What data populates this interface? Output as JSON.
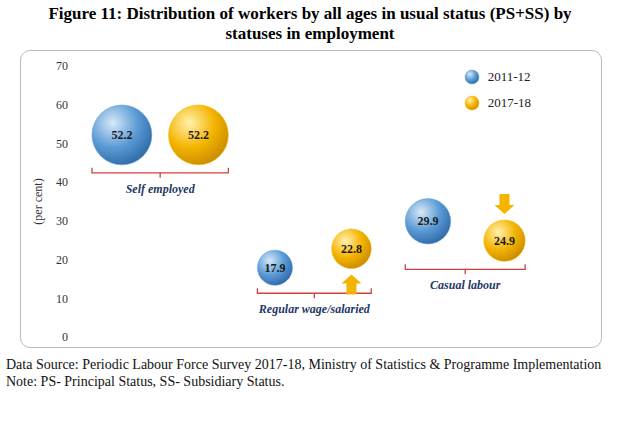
{
  "chart_data": {
    "type": "bubble",
    "title": "Figure 11: Distribution of workers by all ages in usual status (PS+SS) by statuses in employment",
    "categories": [
      "Self employed",
      "Regular wage/salaried",
      "Casual labour"
    ],
    "series": [
      {
        "name": "2011-12",
        "color": "#5b9bd5",
        "values": [
          52.2,
          17.9,
          29.9
        ]
      },
      {
        "name": "2017-18",
        "color": "#f5b400",
        "values": [
          52.2,
          22.8,
          24.9
        ]
      }
    ],
    "y_label": "(per cent)",
    "ylim": [
      0,
      70
    ],
    "yticks": [
      0,
      10,
      20,
      30,
      40,
      50,
      60,
      70
    ],
    "data_labels": true,
    "legend": "upper right",
    "tick_labels": "y",
    "source": "Data Source: Periodic Labour Force Survey 2017-18, Ministry of Statistics & Programme Implementation",
    "note": "Note: PS- Principal Status, SS- Subsidiary Status."
  }
}
